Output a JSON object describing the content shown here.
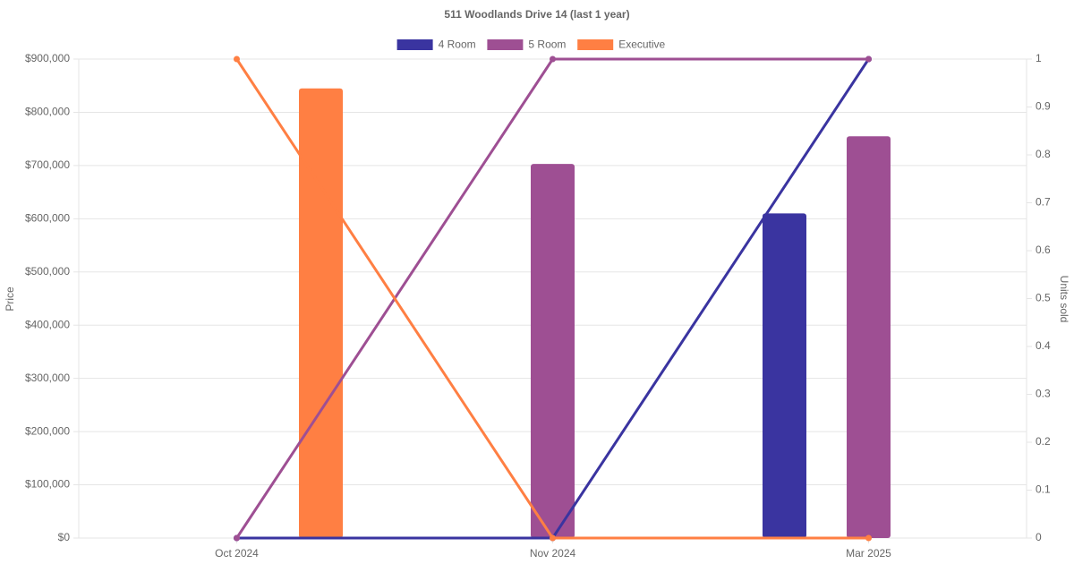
{
  "chart_data": {
    "type": "bar-line",
    "title": "511 Woodlands Drive 14 (last 1 year)",
    "y_label": "Price",
    "y2_label": "Units sold",
    "categories": [
      "Oct 2024",
      "Nov 2024",
      "Mar 2025"
    ],
    "series": [
      {
        "name": "4 Room",
        "color": "#3a34a0",
        "values": [
          null,
          null,
          610000
        ],
        "units_sold": [
          0,
          0,
          1
        ]
      },
      {
        "name": "5 Room",
        "color": "#9e4f93",
        "values": [
          null,
          703000,
          755000
        ],
        "units_sold": [
          0,
          1,
          1
        ]
      },
      {
        "name": "Executive",
        "color": "#ff7f43",
        "values": [
          845000,
          null,
          null
        ],
        "units_sold": [
          1,
          0,
          0
        ]
      }
    ],
    "ylim": [
      0,
      900000
    ],
    "yticks": [
      {
        "value": 0,
        "label": "$0"
      },
      {
        "value": 100000,
        "label": "$100,000"
      },
      {
        "value": 200000,
        "label": "$200,000"
      },
      {
        "value": 300000,
        "label": "$300,000"
      },
      {
        "value": 400000,
        "label": "$400,000"
      },
      {
        "value": 500000,
        "label": "$500,000"
      },
      {
        "value": 600000,
        "label": "$600,000"
      },
      {
        "value": 700000,
        "label": "$700,000"
      },
      {
        "value": 800000,
        "label": "$800,000"
      },
      {
        "value": 900000,
        "label": "$900,000"
      }
    ],
    "y2lim": [
      0,
      1
    ],
    "y2ticks": [
      0,
      0.1,
      0.2,
      0.3,
      0.4,
      0.5,
      0.6,
      0.7,
      0.8,
      0.9,
      1
    ],
    "grid": true,
    "legend": "top"
  }
}
